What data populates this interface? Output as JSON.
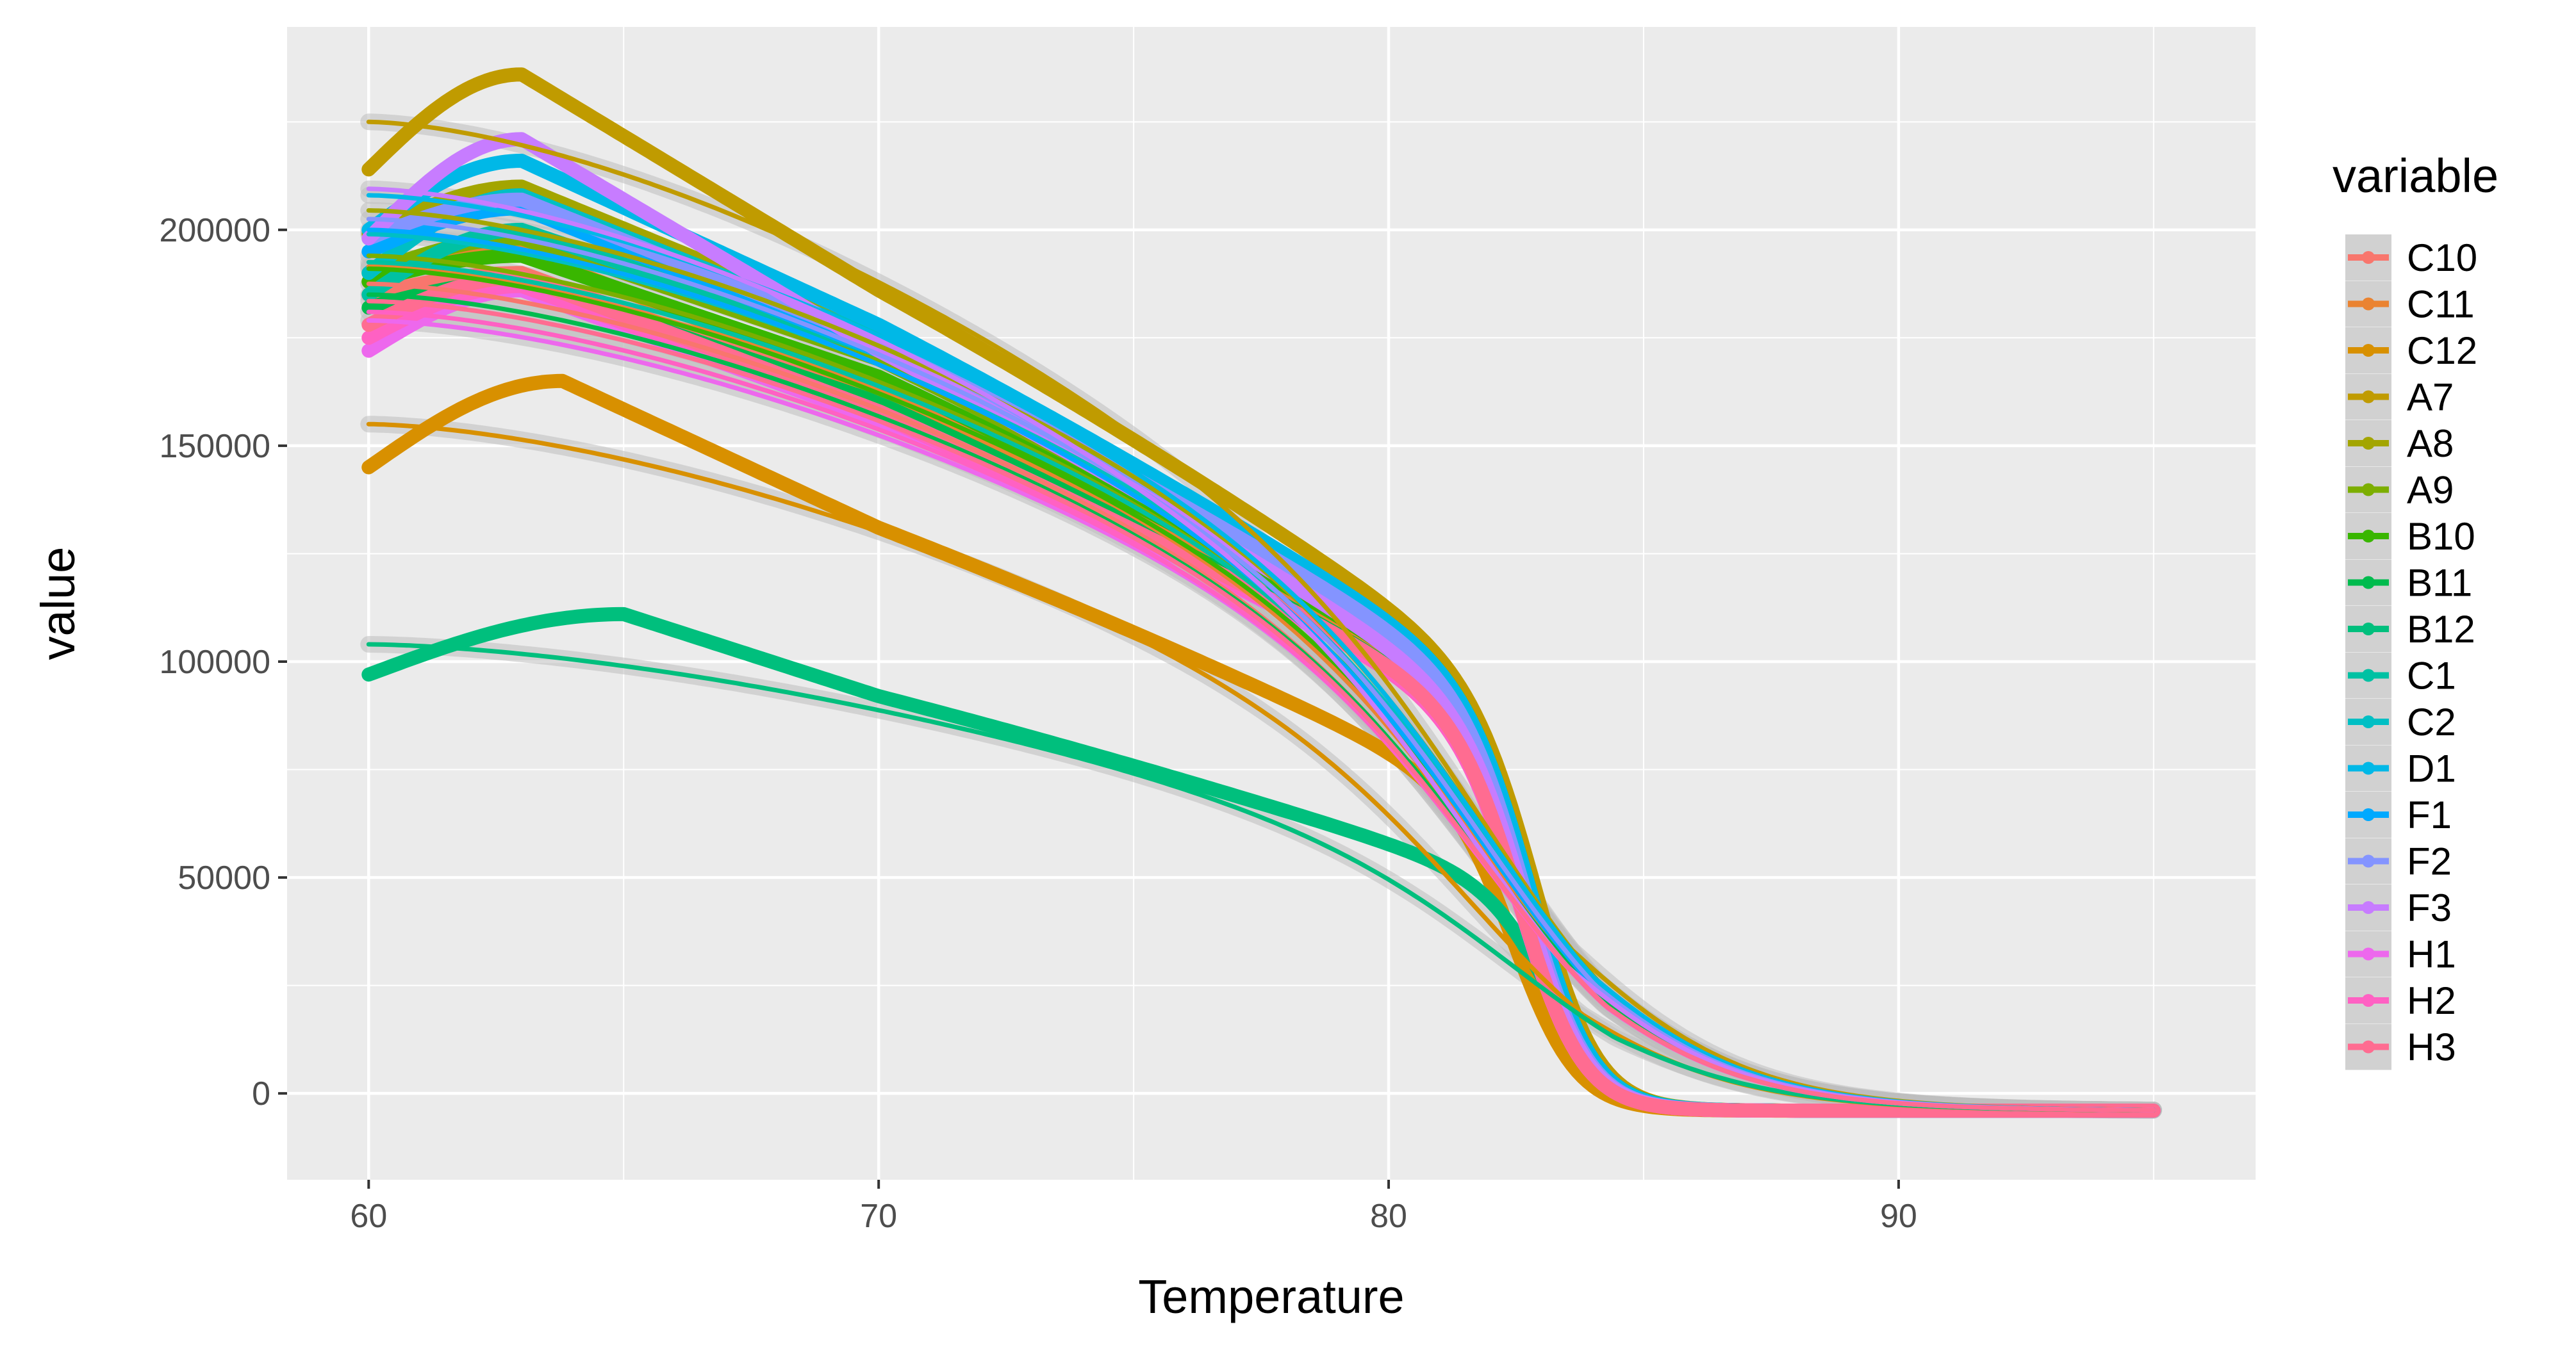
{
  "chart_data": {
    "type": "line",
    "title": "",
    "xlabel": "Temperature",
    "ylabel": "value",
    "xlim": [
      58.4,
      97
    ],
    "ylim": [
      -20000,
      247000
    ],
    "x_ticks": [
      60,
      70,
      80,
      90
    ],
    "x_tick_labels": [
      "60",
      "70",
      "80",
      "90"
    ],
    "y_ticks": [
      0,
      50000,
      100000,
      150000,
      200000
    ],
    "y_tick_labels": [
      "0",
      "50000",
      "100000",
      "150000",
      "200000"
    ],
    "grid": true,
    "legend": {
      "title": "variable",
      "position": "right"
    },
    "series": [
      {
        "name": "C10",
        "color": "#F8766D",
        "start": 185000,
        "peak_x": 63.0,
        "peak": 190000,
        "v70": 160000,
        "v80": 100000,
        "mid": 82.8
      },
      {
        "name": "C11",
        "color": "#EA8331",
        "start": 188000,
        "peak_x": 63.0,
        "peak": 195000,
        "v70": 163000,
        "v80": 103000,
        "mid": 82.8
      },
      {
        "name": "C12",
        "color": "#D89000",
        "start": 145000,
        "peak_x": 63.8,
        "peak": 165000,
        "v70": 131000,
        "v80": 80000,
        "mid": 82.6
      },
      {
        "name": "A7",
        "color": "#C09B00",
        "start": 214000,
        "peak_x": 63.0,
        "peak": 236000,
        "v70": 186000,
        "v80": 113000,
        "mid": 83.0
      },
      {
        "name": "A8",
        "color": "#A3A500",
        "start": 199000,
        "peak_x": 63.0,
        "peak": 210000,
        "v70": 176000,
        "v80": 110000,
        "mid": 82.9
      },
      {
        "name": "A9",
        "color": "#7CAE00",
        "start": 190000,
        "peak_x": 63.0,
        "peak": 198000,
        "v70": 170000,
        "v80": 106000,
        "mid": 82.9
      },
      {
        "name": "B10",
        "color": "#39B600",
        "start": 188000,
        "peak_x": 63.0,
        "peak": 194000,
        "v70": 166000,
        "v80": 104000,
        "mid": 82.9
      },
      {
        "name": "B11",
        "color": "#00BB4E",
        "start": 182000,
        "peak_x": 63.0,
        "peak": 188000,
        "v70": 160000,
        "v80": 100000,
        "mid": 82.8
      },
      {
        "name": "B12",
        "color": "#00BF7D",
        "start": 97000,
        "peak_x": 65.0,
        "peak": 111000,
        "v70": 92000,
        "v80": 58000,
        "mid": 83.3
      },
      {
        "name": "C1",
        "color": "#00C1A3",
        "start": 185000,
        "peak_x": 63.0,
        "peak": 200000,
        "v70": 172000,
        "v80": 106000,
        "mid": 82.9
      },
      {
        "name": "C2",
        "color": "#00BFC4",
        "start": 190000,
        "peak_x": 63.0,
        "peak": 208000,
        "v70": 175000,
        "v80": 108000,
        "mid": 82.9
      },
      {
        "name": "D1",
        "color": "#00B8E7",
        "start": 200000,
        "peak_x": 63.0,
        "peak": 216000,
        "v70": 178000,
        "v80": 110000,
        "mid": 82.9
      },
      {
        "name": "F1",
        "color": "#00A9FF",
        "start": 195000,
        "peak_x": 63.0,
        "peak": 205000,
        "v70": 172000,
        "v80": 106000,
        "mid": 82.8
      },
      {
        "name": "F2",
        "color": "#8494FF",
        "start": 198000,
        "peak_x": 63.0,
        "peak": 207000,
        "v70": 174000,
        "v80": 108000,
        "mid": 82.8
      },
      {
        "name": "F3",
        "color": "#C77CFF",
        "start": 198000,
        "peak_x": 63.0,
        "peak": 221000,
        "v70": 172000,
        "v80": 104000,
        "mid": 82.8
      },
      {
        "name": "H1",
        "color": "#ED68ED",
        "start": 172000,
        "peak_x": 63.0,
        "peak": 186000,
        "v70": 156000,
        "v80": 99000,
        "mid": 82.7
      },
      {
        "name": "H2",
        "color": "#FF61C3",
        "start": 175000,
        "peak_x": 63.0,
        "peak": 187000,
        "v70": 157000,
        "v80": 99000,
        "mid": 82.7
      },
      {
        "name": "H3",
        "color": "#FF6C91",
        "start": 178000,
        "peak_x": 63.0,
        "peak": 189000,
        "v70": 158000,
        "v80": 100000,
        "mid": 82.7
      }
    ],
    "tail_value": -4000,
    "x_end": 95
  }
}
